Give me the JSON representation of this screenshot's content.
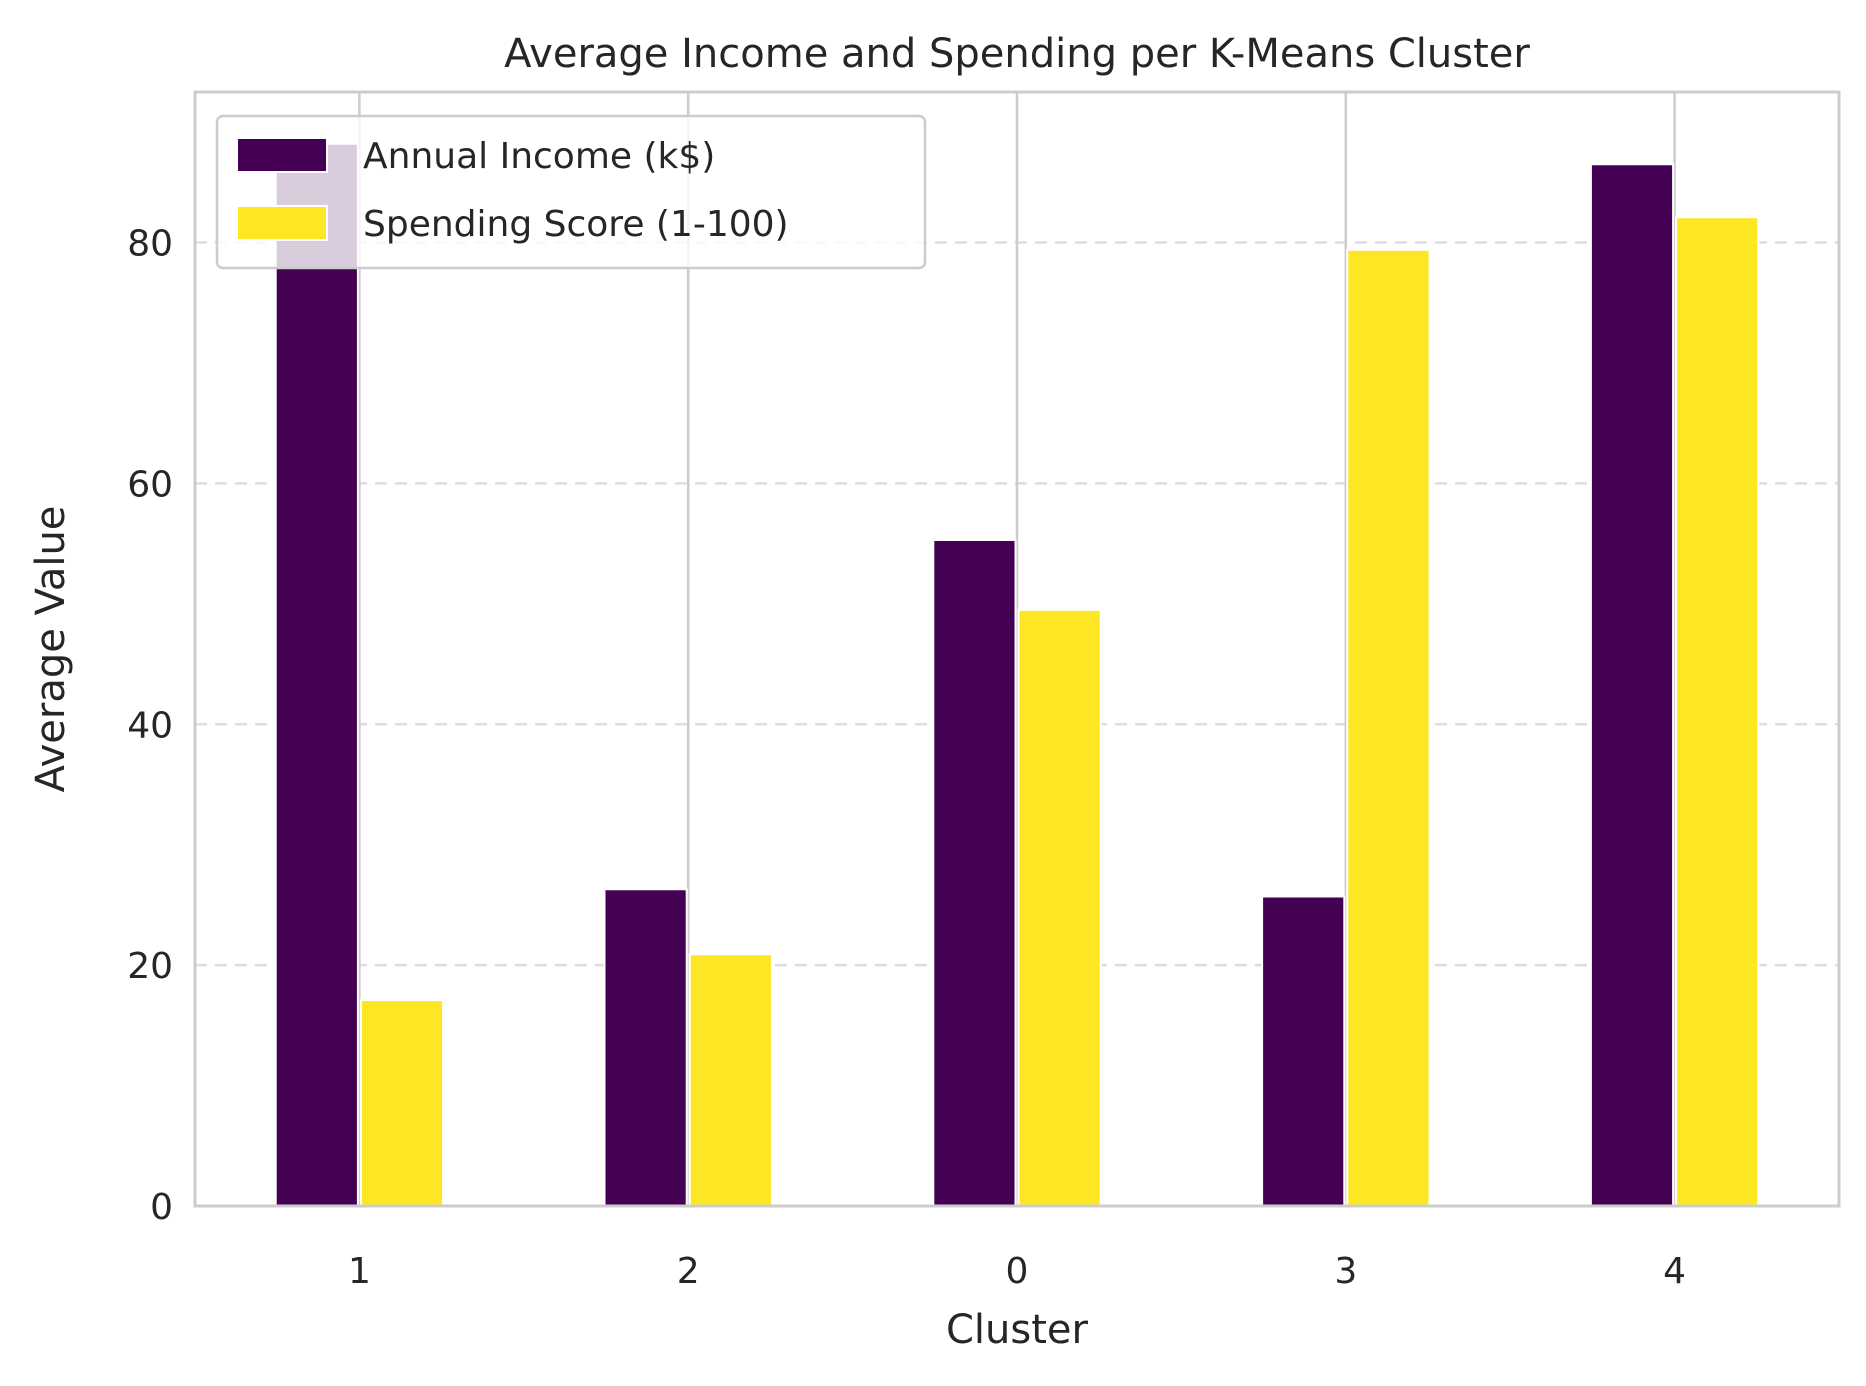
{
  "chart_data": {
    "type": "bar",
    "title": "Average Income and Spending per K-Means Cluster",
    "xlabel": "Cluster",
    "ylabel": "Average Value",
    "categories": [
      "1",
      "2",
      "0",
      "3",
      "4"
    ],
    "series": [
      {
        "name": "Annual Income (k$)",
        "color": "#440154",
        "values": [
          88.2,
          26.3,
          55.3,
          25.7,
          86.5
        ]
      },
      {
        "name": "Spending Score (1-100)",
        "color": "#fde725",
        "values": [
          17.1,
          20.9,
          49.5,
          79.4,
          82.1
        ]
      }
    ],
    "ylim": [
      0,
      92.5
    ],
    "yticks": [
      0,
      20,
      40,
      60,
      80
    ],
    "grid": "y-dashed",
    "legend_position": "top-left"
  }
}
